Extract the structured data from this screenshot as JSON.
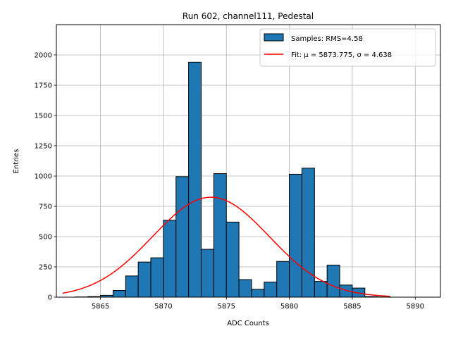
{
  "chart_data": {
    "type": "bar",
    "title": "Run 602, channel111, Pedestal",
    "xlabel": "ADC Counts",
    "ylabel": "Entries",
    "xlim": [
      5861.5,
      5892.0
    ],
    "ylim": [
      0,
      2250
    ],
    "xticks": [
      5865,
      5870,
      5875,
      5880,
      5885,
      5890
    ],
    "yticks": [
      0,
      250,
      500,
      750,
      1000,
      1250,
      1500,
      1750,
      2000
    ],
    "grid": true,
    "legend_position": "top-right",
    "colors": {
      "bar": "#1f77b4",
      "fit": "#ff0000"
    },
    "histogram": {
      "name": "Samples: RMS=4.58",
      "bin_edges": [
        5863,
        5864,
        5865,
        5866,
        5867,
        5868,
        5869,
        5870,
        5871,
        5872,
        5873,
        5874,
        5875,
        5876,
        5877,
        5878,
        5879,
        5880,
        5881,
        5882,
        5883,
        5884,
        5885,
        5886,
        5887,
        5888
      ],
      "counts": [
        2,
        5,
        15,
        55,
        175,
        290,
        325,
        635,
        995,
        1940,
        395,
        1020,
        620,
        145,
        65,
        125,
        295,
        1015,
        1065,
        130,
        265,
        100,
        75,
        5,
        2
      ]
    },
    "fit": {
      "name": "Fit: μ = 5873.775, σ = 4.638",
      "mu": 5873.775,
      "sigma": 4.638,
      "amplitude": 825,
      "x_range": [
        5862,
        5888
      ]
    }
  }
}
